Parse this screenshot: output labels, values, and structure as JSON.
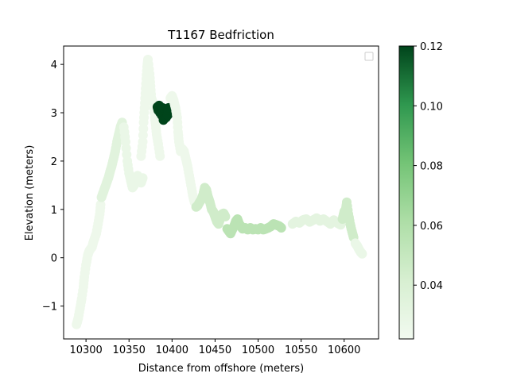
{
  "chart_data": {
    "type": "scatter",
    "title": "T1167 Bedfriction",
    "xlabel": "Distance from offshore (meters)",
    "ylabel": "Elevation (meters)",
    "xlim": [
      10274,
      10640
    ],
    "ylim": [
      -1.68,
      4.38
    ],
    "x_ticks": [
      10300,
      10350,
      10400,
      10450,
      10500,
      10550,
      10600
    ],
    "y_ticks": [
      -1,
      0,
      1,
      2,
      3,
      4
    ],
    "legend": {
      "placement": "top-right",
      "entries": []
    },
    "grid": false,
    "colorbar": {
      "colormap": "Greens",
      "range": [
        0.022,
        0.12
      ],
      "ticks": [
        0.04,
        0.06,
        0.08,
        0.1,
        0.12
      ],
      "tick_labels": [
        "0.04",
        "0.06",
        "0.08",
        "0.10",
        "0.12"
      ]
    },
    "segments": [
      {
        "c": 0.025,
        "pts": [
          [
            10289,
            -1.38
          ],
          [
            10291,
            -1.25
          ],
          [
            10293,
            -1.05
          ],
          [
            10295,
            -0.85
          ],
          [
            10297,
            -0.6
          ],
          [
            10298,
            -0.4
          ],
          [
            10300,
            -0.15
          ],
          [
            10302,
            0.05
          ],
          [
            10304,
            0.15
          ],
          [
            10307,
            0.22
          ],
          [
            10309,
            0.35
          ],
          [
            10312,
            0.5
          ],
          [
            10314,
            0.7
          ],
          [
            10316,
            0.9
          ],
          [
            10317,
            1.1
          ]
        ]
      },
      {
        "c": 0.034,
        "pts": [
          [
            10318,
            1.25
          ],
          [
            10320,
            1.35
          ],
          [
            10322,
            1.45
          ],
          [
            10324,
            1.55
          ],
          [
            10326,
            1.65
          ],
          [
            10328,
            1.78
          ],
          [
            10330,
            1.9
          ],
          [
            10332,
            2.05
          ],
          [
            10334,
            2.2
          ],
          [
            10336,
            2.4
          ],
          [
            10338,
            2.55
          ],
          [
            10340,
            2.7
          ],
          [
            10342,
            2.8
          ]
        ]
      },
      {
        "c": 0.028,
        "pts": [
          [
            10344,
            2.7
          ],
          [
            10346,
            2.4
          ],
          [
            10348,
            2.0
          ],
          [
            10350,
            1.75
          ],
          [
            10352,
            1.6
          ],
          [
            10354,
            1.45
          ],
          [
            10356,
            1.5
          ],
          [
            10358,
            1.6
          ],
          [
            10360,
            1.7
          ],
          [
            10362,
            1.6
          ],
          [
            10364,
            1.55
          ],
          [
            10366,
            1.65
          ]
        ]
      },
      {
        "c": 0.025,
        "pts": [
          [
            10364,
            2.1
          ],
          [
            10366,
            2.4
          ],
          [
            10367,
            2.8
          ],
          [
            10368,
            3.1
          ],
          [
            10369,
            3.4
          ],
          [
            10370,
            3.7
          ],
          [
            10371,
            3.95
          ],
          [
            10372,
            4.1
          ],
          [
            10374,
            3.8
          ],
          [
            10375,
            3.55
          ],
          [
            10376,
            3.3
          ],
          [
            10378,
            3.2
          ],
          [
            10380,
            2.9
          ],
          [
            10381,
            2.75
          ],
          [
            10382,
            2.55
          ],
          [
            10384,
            2.35
          ],
          [
            10386,
            2.1
          ]
        ]
      },
      {
        "c": 0.12,
        "pts": [
          [
            10383,
            3.12
          ],
          [
            10384,
            3.05
          ],
          [
            10385,
            3.15
          ],
          [
            10386,
            3.0
          ],
          [
            10387,
            3.08
          ],
          [
            10388,
            2.95
          ],
          [
            10389,
            3.1
          ],
          [
            10390,
            2.85
          ],
          [
            10391,
            2.92
          ],
          [
            10392,
            3.05
          ],
          [
            10393,
            2.9
          ],
          [
            10394,
            3.0
          ],
          [
            10395,
            2.95
          ],
          [
            10396,
            3.1
          ]
        ]
      },
      {
        "c": 0.025,
        "pts": [
          [
            10398,
            3.3
          ],
          [
            10400,
            3.35
          ],
          [
            10402,
            3.25
          ],
          [
            10404,
            3.1
          ],
          [
            10406,
            2.9
          ],
          [
            10407,
            2.6
          ],
          [
            10408,
            2.4
          ],
          [
            10410,
            2.2
          ],
          [
            10412,
            2.25
          ],
          [
            10414,
            2.2
          ],
          [
            10416,
            2.05
          ],
          [
            10418,
            1.9
          ],
          [
            10420,
            1.7
          ],
          [
            10422,
            1.5
          ],
          [
            10424,
            1.3
          ],
          [
            10426,
            1.15
          ]
        ]
      },
      {
        "c": 0.045,
        "pts": [
          [
            10428,
            1.05
          ],
          [
            10430,
            1.08
          ],
          [
            10432,
            1.15
          ],
          [
            10434,
            1.2
          ],
          [
            10436,
            1.3
          ],
          [
            10438,
            1.45
          ],
          [
            10440,
            1.4
          ],
          [
            10442,
            1.25
          ],
          [
            10444,
            1.15
          ],
          [
            10446,
            1.0
          ],
          [
            10448,
            0.95
          ],
          [
            10450,
            0.85
          ],
          [
            10452,
            0.75
          ],
          [
            10454,
            0.7
          ],
          [
            10456,
            0.8
          ],
          [
            10458,
            0.9
          ],
          [
            10460,
            0.92
          ],
          [
            10462,
            0.85
          ]
        ]
      },
      {
        "c": 0.055,
        "pts": [
          [
            10464,
            0.6
          ],
          [
            10466,
            0.55
          ],
          [
            10468,
            0.5
          ],
          [
            10470,
            0.58
          ],
          [
            10472,
            0.65
          ],
          [
            10474,
            0.75
          ],
          [
            10476,
            0.8
          ],
          [
            10478,
            0.7
          ],
          [
            10480,
            0.65
          ],
          [
            10482,
            0.6
          ],
          [
            10485,
            0.62
          ],
          [
            10488,
            0.58
          ],
          [
            10491,
            0.62
          ],
          [
            10494,
            0.58
          ],
          [
            10497,
            0.6
          ],
          [
            10500,
            0.58
          ],
          [
            10503,
            0.62
          ],
          [
            10506,
            0.58
          ],
          [
            10509,
            0.6
          ],
          [
            10512,
            0.62
          ],
          [
            10515,
            0.65
          ],
          [
            10518,
            0.7
          ],
          [
            10521,
            0.68
          ],
          [
            10524,
            0.66
          ],
          [
            10527,
            0.62
          ]
        ]
      },
      {
        "c": 0.032,
        "pts": [
          [
            10540,
            0.7
          ],
          [
            10544,
            0.75
          ],
          [
            10548,
            0.72
          ],
          [
            10552,
            0.78
          ],
          [
            10556,
            0.8
          ],
          [
            10560,
            0.74
          ],
          [
            10564,
            0.78
          ],
          [
            10568,
            0.82
          ],
          [
            10572,
            0.76
          ],
          [
            10576,
            0.8
          ],
          [
            10580,
            0.75
          ],
          [
            10584,
            0.7
          ],
          [
            10588,
            0.78
          ],
          [
            10592,
            0.72
          ],
          [
            10596,
            0.68
          ]
        ]
      },
      {
        "c": 0.045,
        "pts": [
          [
            10598,
            0.8
          ],
          [
            10600,
            0.95
          ],
          [
            10602,
            1.0
          ],
          [
            10603,
            1.15
          ],
          [
            10605,
            0.9
          ],
          [
            10607,
            0.7
          ],
          [
            10609,
            0.55
          ],
          [
            10611,
            0.42
          ]
        ]
      },
      {
        "c": 0.028,
        "pts": [
          [
            10613,
            0.3
          ],
          [
            10615,
            0.25
          ],
          [
            10617,
            0.18
          ],
          [
            10619,
            0.12
          ],
          [
            10621,
            0.08
          ]
        ]
      }
    ]
  }
}
